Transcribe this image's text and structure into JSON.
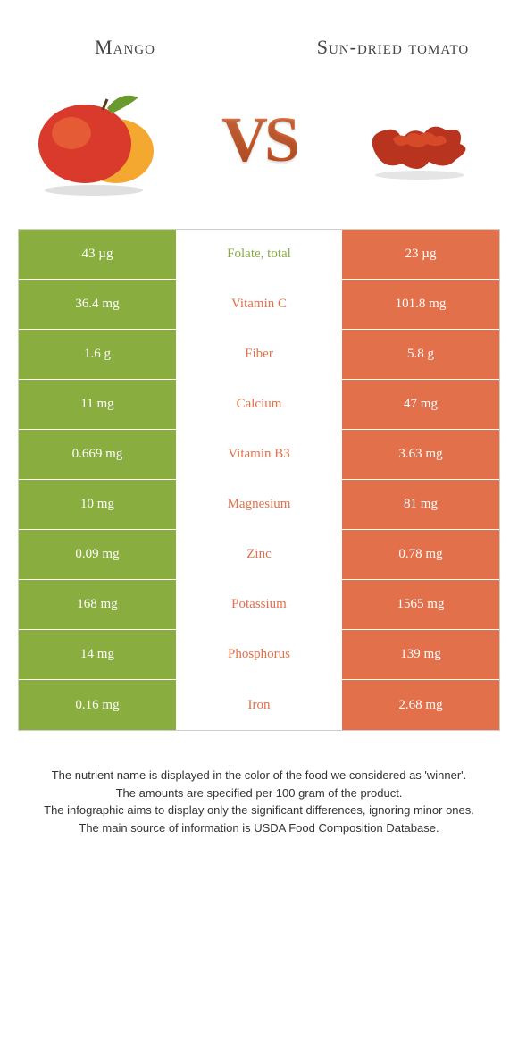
{
  "header": {
    "left": "Mango",
    "right": "Sun-dried tomato",
    "vs": "VS"
  },
  "colors": {
    "mango": "#8aad3f",
    "tomato": "#e2704b",
    "mango_text": "#8aad3f",
    "tomato_text": "#e2704b"
  },
  "rows": [
    {
      "left": "43 µg",
      "label": "Folate, total",
      "right": "23 µg",
      "winner": "mango"
    },
    {
      "left": "36.4 mg",
      "label": "Vitamin C",
      "right": "101.8 mg",
      "winner": "tomato"
    },
    {
      "left": "1.6 g",
      "label": "Fiber",
      "right": "5.8 g",
      "winner": "tomato"
    },
    {
      "left": "11 mg",
      "label": "Calcium",
      "right": "47 mg",
      "winner": "tomato"
    },
    {
      "left": "0.669 mg",
      "label": "Vitamin B3",
      "right": "3.63 mg",
      "winner": "tomato"
    },
    {
      "left": "10 mg",
      "label": "Magnesium",
      "right": "81 mg",
      "winner": "tomato"
    },
    {
      "left": "0.09 mg",
      "label": "Zinc",
      "right": "0.78 mg",
      "winner": "tomato"
    },
    {
      "left": "168 mg",
      "label": "Potassium",
      "right": "1565 mg",
      "winner": "tomato"
    },
    {
      "left": "14 mg",
      "label": "Phosphorus",
      "right": "139 mg",
      "winner": "tomato"
    },
    {
      "left": "0.16 mg",
      "label": "Iron",
      "right": "2.68 mg",
      "winner": "tomato"
    }
  ],
  "footer": {
    "line1": "The nutrient name is displayed in the color of the food we considered as 'winner'.",
    "line2": "The amounts are specified per 100 gram of the product.",
    "line3": "The infographic aims to display only the significant differences, ignoring minor ones.",
    "line4": "The main source of information is USDA Food Composition Database."
  }
}
